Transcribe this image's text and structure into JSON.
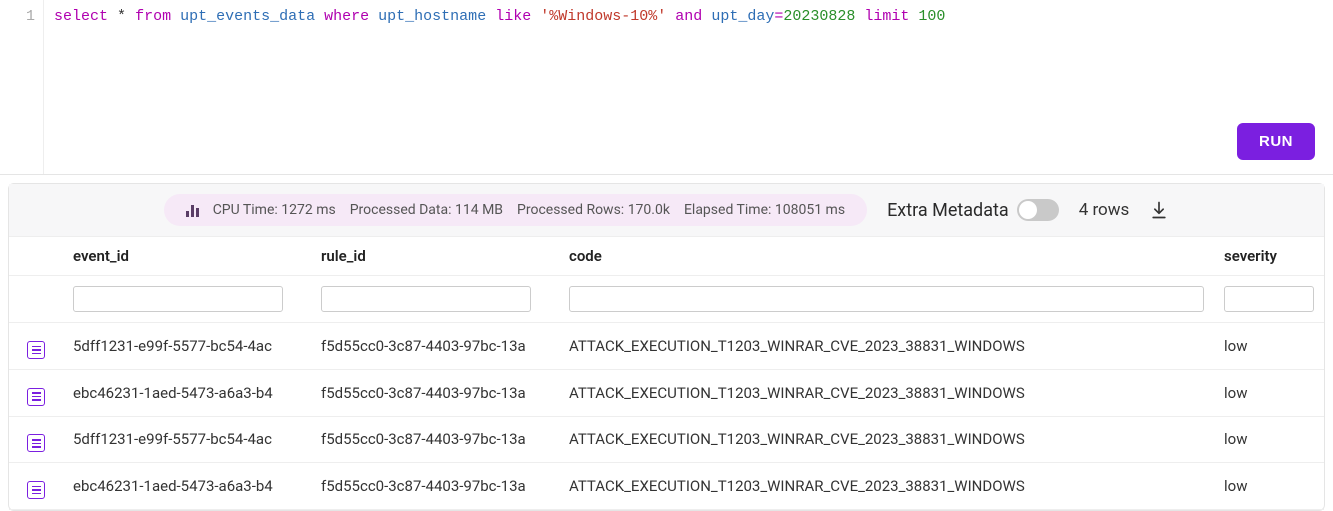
{
  "editor": {
    "line_no": "1",
    "tokens": {
      "select": "select",
      "star": "*",
      "from": "from",
      "table": "upt_events_data",
      "where": "where",
      "col_host": "upt_hostname",
      "like": "like",
      "str": "'%Windows-10%'",
      "and": "and",
      "col_day": "upt_day",
      "eq": "=",
      "daynum": "20230828",
      "limit": "limit",
      "limitnum": "100"
    },
    "run_label": "RUN"
  },
  "stats": {
    "cpu_label": "CPU Time:",
    "cpu_value": "1272 ms",
    "data_label": "Processed Data:",
    "data_value": "114 MB",
    "rows_label": "Processed Rows:",
    "rows_value": "170.0k",
    "elapsed_label": "Elapsed Time:",
    "elapsed_value": "108051 ms",
    "extra_meta_label": "Extra Metadata",
    "row_count_label": "4 rows"
  },
  "columns": {
    "event_id": "event_id",
    "rule_id": "rule_id",
    "code": "code",
    "severity": "severity"
  },
  "rows": [
    {
      "event_id": "5dff1231-e99f-5577-bc54-4ac",
      "rule_id": "f5d55cc0-3c87-4403-97bc-13a",
      "code": "ATTACK_EXECUTION_T1203_WINRAR_CVE_2023_38831_WINDOWS",
      "severity": "low"
    },
    {
      "event_id": "ebc46231-1aed-5473-a6a3-b4",
      "rule_id": "f5d55cc0-3c87-4403-97bc-13a",
      "code": "ATTACK_EXECUTION_T1203_WINRAR_CVE_2023_38831_WINDOWS",
      "severity": "low"
    },
    {
      "event_id": "5dff1231-e99f-5577-bc54-4ac",
      "rule_id": "f5d55cc0-3c87-4403-97bc-13a",
      "code": "ATTACK_EXECUTION_T1203_WINRAR_CVE_2023_38831_WINDOWS",
      "severity": "low"
    },
    {
      "event_id": "ebc46231-1aed-5473-a6a3-b4",
      "rule_id": "f5d55cc0-3c87-4403-97bc-13a",
      "code": "ATTACK_EXECUTION_T1203_WINRAR_CVE_2023_38831_WINDOWS",
      "severity": "low"
    }
  ],
  "colors": {
    "accent": "#7b1fe0",
    "pill_bg": "#f6e9f7",
    "keyword": "#b000b0",
    "identifier": "#2e6eb5",
    "string": "#c0392b",
    "number": "#2a8f2a"
  }
}
